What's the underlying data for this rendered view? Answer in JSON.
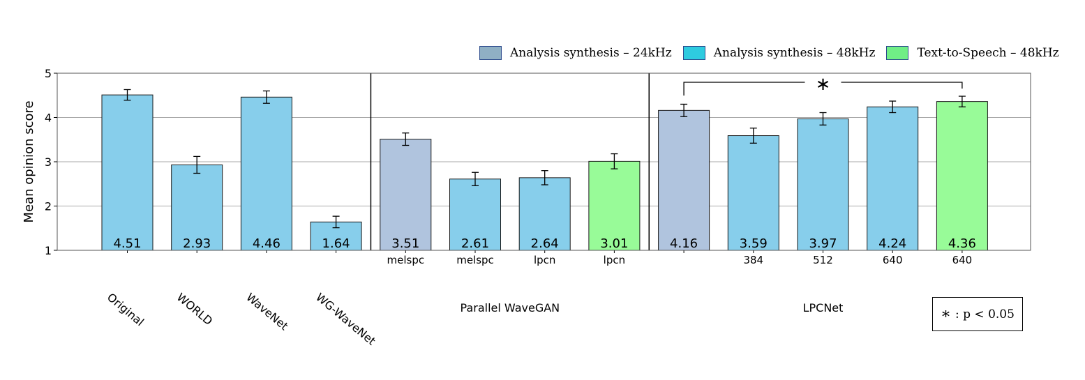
{
  "legend": [
    {
      "label": "Analysis synthesis – 24kHz",
      "color": "#8fb0c4"
    },
    {
      "label": "Analysis synthesis – 48kHz",
      "color": "#2ecbe0"
    },
    {
      "label": "Text-to-Speech – 48kHz",
      "color": "#70ee86"
    }
  ],
  "significance_note": {
    "symbol": "∗",
    "text": ": p < 0.05"
  },
  "chart_data": {
    "type": "bar",
    "ylabel": "Mean opinion score",
    "ylim": [
      1,
      5
    ],
    "yticks": [
      1,
      2,
      3,
      4,
      5
    ],
    "grid": "horizontal",
    "legend_position": "top-right",
    "bar_colors": {
      "24kHz": "#b0c4de",
      "48kHz": "#87ceeb",
      "tts": "#98fb98"
    },
    "bars": [
      {
        "group": "Original",
        "sublabel": "",
        "value": 4.51,
        "error": 0.12,
        "kind": "48kHz"
      },
      {
        "group": "WORLD",
        "sublabel": "",
        "value": 2.93,
        "error": 0.19,
        "kind": "48kHz"
      },
      {
        "group": "WaveNet",
        "sublabel": "",
        "value": 4.46,
        "error": 0.14,
        "kind": "48kHz"
      },
      {
        "group": "WG-WaveNet",
        "sublabel": "",
        "value": 1.64,
        "error": 0.13,
        "kind": "48kHz"
      },
      {
        "group": "Parallel WaveGAN",
        "sublabel": "melspc",
        "value": 3.51,
        "error": 0.14,
        "kind": "24kHz"
      },
      {
        "group": "Parallel WaveGAN",
        "sublabel": "melspc",
        "value": 2.61,
        "error": 0.15,
        "kind": "48kHz"
      },
      {
        "group": "Parallel WaveGAN",
        "sublabel": "lpcn",
        "value": 2.64,
        "error": 0.16,
        "kind": "48kHz"
      },
      {
        "group": "Parallel WaveGAN",
        "sublabel": "lpcn",
        "value": 3.01,
        "error": 0.17,
        "kind": "tts"
      },
      {
        "group": "LPCNet",
        "sublabel": "",
        "value": 4.16,
        "error": 0.14,
        "kind": "24kHz"
      },
      {
        "group": "LPCNet",
        "sublabel": "384",
        "value": 3.59,
        "error": 0.17,
        "kind": "48kHz"
      },
      {
        "group": "LPCNet",
        "sublabel": "512",
        "value": 3.97,
        "error": 0.14,
        "kind": "48kHz"
      },
      {
        "group": "LPCNet",
        "sublabel": "640",
        "value": 4.24,
        "error": 0.13,
        "kind": "48kHz"
      },
      {
        "group": "LPCNet",
        "sublabel": "640",
        "value": 4.36,
        "error": 0.12,
        "kind": "tts"
      }
    ],
    "rotated_labels": [
      "Original",
      "WORLD",
      "WaveNet",
      "WG-WaveNet"
    ],
    "group_labels": [
      "Parallel WaveGAN",
      "LPCNet"
    ],
    "significance": {
      "from_bar": 8,
      "to_bar": 12,
      "symbol": "∗"
    }
  }
}
